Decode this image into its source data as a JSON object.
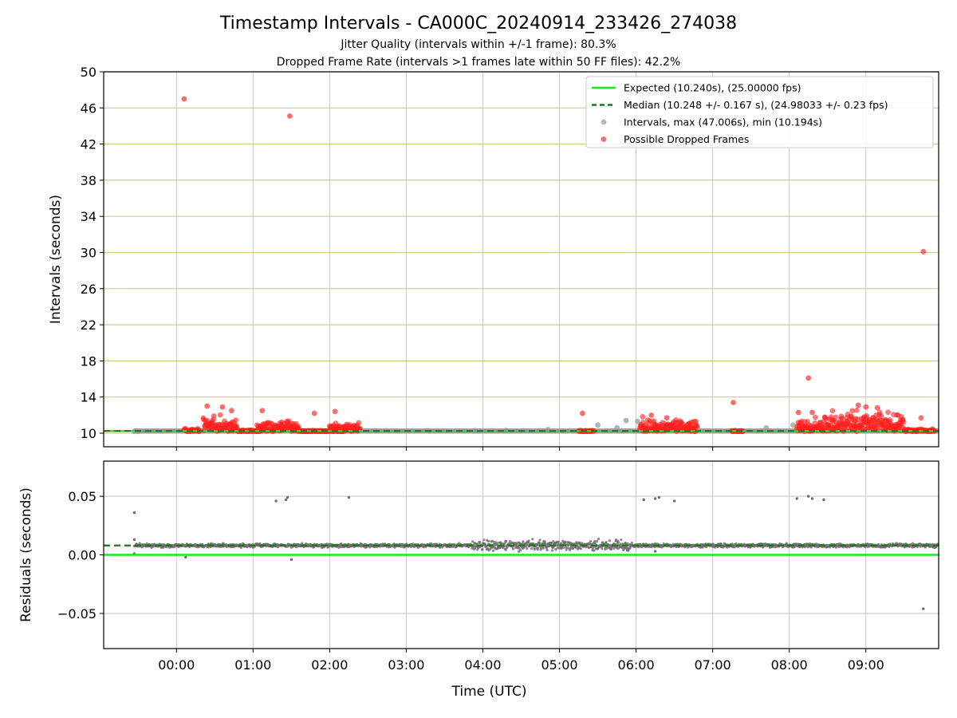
{
  "figure": {
    "title": "Timestamp Intervals - CA000C_20240914_233426_274038",
    "subtitle_1": "Jitter Quality (intervals within +/-1 frame): 80.3%",
    "subtitle_2": "Dropped Frame Rate (intervals >1 frames late within 50 FF files): 42.2%"
  },
  "chart_data": [
    {
      "type": "scatter",
      "name": "intervals-panel",
      "ylabel": "Intervals (seconds)",
      "xlabel": "",
      "x_unit": "time of day (hours, UTC; negative = before 00:00)",
      "xlim": [
        -0.95,
        9.95
      ],
      "ylim": [
        8.5,
        50
      ],
      "yticks": [
        10,
        14,
        18,
        22,
        26,
        30,
        34,
        38,
        42,
        46,
        50
      ],
      "xticks": [
        "00:00",
        "01:00",
        "02:00",
        "03:00",
        "04:00",
        "05:00",
        "06:00",
        "07:00",
        "08:00",
        "09:00"
      ],
      "grid": true,
      "legend_position": "top-right",
      "reference_lines": [
        {
          "name": "Expected (10.240s), (25.00000 fps)",
          "y": 10.24,
          "style": "solid",
          "color": "#22e022"
        },
        {
          "name": "Median (10.248 +/- 0.167 s), (24.98033 +/- 0.23 fps)",
          "y": 10.248,
          "style": "dashed",
          "color": "#1a7a1a"
        }
      ],
      "series": [
        {
          "name": "Intervals, max (47.006s), min (10.194s)",
          "color": "#9a9a9a",
          "points": [
            [
              -0.55,
              10.19
            ],
            [
              -0.5,
              10.2
            ],
            [
              1.5,
              10.22
            ],
            [
              2.6,
              10.25
            ],
            [
              3.3,
              10.25
            ],
            [
              3.9,
              10.3
            ],
            [
              4.3,
              10.3
            ],
            [
              4.85,
              10.4
            ],
            [
              5.5,
              10.9
            ],
            [
              5.75,
              10.6
            ],
            [
              5.87,
              11.4
            ],
            [
              6.02,
              11.3
            ],
            [
              6.8,
              10.6
            ],
            [
              7.3,
              10.3
            ],
            [
              7.7,
              10.6
            ],
            [
              8.05,
              10.9
            ],
            [
              8.15,
              10.4
            ]
          ]
        },
        {
          "name": "Possible Dropped Frames",
          "color": "#ff3030",
          "points": [
            [
              0.1,
              47.0
            ],
            [
              1.48,
              45.1
            ],
            [
              9.75,
              30.1
            ],
            [
              8.25,
              16.1
            ],
            [
              7.27,
              13.4
            ],
            [
              8.12,
              12.3
            ],
            [
              8.3,
              12.3
            ],
            [
              0.4,
              13.0
            ],
            [
              0.6,
              12.9
            ],
            [
              0.72,
              12.5
            ],
            [
              1.12,
              12.5
            ],
            [
              1.8,
              12.2
            ],
            [
              2.07,
              12.4
            ],
            [
              5.3,
              12.2
            ],
            [
              6.2,
              12.0
            ],
            [
              6.4,
              11.7
            ],
            [
              8.9,
              13.1
            ],
            [
              9.0,
              12.9
            ],
            [
              9.15,
              12.8
            ],
            [
              9.72,
              11.7
            ],
            [
              8.88,
              10.2
            ],
            [
              9.45,
              10.3
            ]
          ]
        }
      ]
    },
    {
      "type": "scatter",
      "name": "residuals-panel",
      "ylabel": "Residuals (seconds)",
      "xlabel": "Time (UTC)",
      "xlim": [
        -0.95,
        9.95
      ],
      "ylim": [
        -0.08,
        0.08
      ],
      "yticks": [
        -0.05,
        0.0,
        0.05
      ],
      "ytick_labels": [
        "−0.05",
        "0.00",
        "0.05"
      ],
      "xticks": [
        "00:00",
        "01:00",
        "02:00",
        "03:00",
        "04:00",
        "05:00",
        "06:00",
        "07:00",
        "08:00",
        "09:00"
      ],
      "grid": true,
      "reference_lines": [
        {
          "y": 0.0,
          "style": "solid",
          "color": "#22e022"
        },
        {
          "y": 0.008,
          "style": "dashed",
          "color": "#1a7a1a"
        }
      ],
      "series": [
        {
          "name": "residuals",
          "color": "#6e6e6e",
          "points": [
            [
              -0.55,
              0.036
            ],
            [
              -0.55,
              0.013
            ],
            [
              -0.55,
              0.001
            ],
            [
              0.12,
              -0.002
            ],
            [
              1.3,
              0.046
            ],
            [
              1.43,
              0.047
            ],
            [
              1.45,
              0.049
            ],
            [
              1.5,
              -0.004
            ],
            [
              2.25,
              0.049
            ],
            [
              6.1,
              0.047
            ],
            [
              6.25,
              0.048
            ],
            [
              6.3,
              0.049
            ],
            [
              6.5,
              0.046
            ],
            [
              6.25,
              0.003
            ],
            [
              8.1,
              0.048
            ],
            [
              8.25,
              0.05
            ],
            [
              8.3,
              0.048
            ],
            [
              8.45,
              0.047
            ],
            [
              9.75,
              -0.046
            ]
          ]
        }
      ]
    }
  ]
}
